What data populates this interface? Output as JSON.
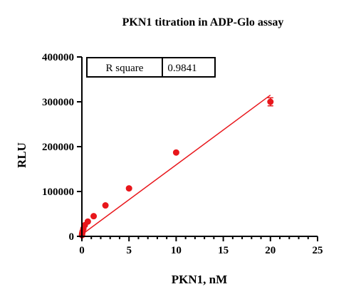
{
  "chart_data": {
    "type": "scatter",
    "title": "PKN1 titration in ADP-Glo assay",
    "xlabel": "PKN1, nM",
    "ylabel": "RLU",
    "xlim": [
      0,
      25
    ],
    "ylim": [
      0,
      400000
    ],
    "x_ticks": [
      0,
      5,
      10,
      15,
      20,
      25
    ],
    "y_ticks": [
      0,
      100000,
      200000,
      300000,
      400000
    ],
    "x_tick_labels": [
      "0",
      "5",
      "10",
      "15",
      "20",
      "25"
    ],
    "y_tick_labels": [
      "0",
      "100000",
      "200000",
      "300000",
      "400000"
    ],
    "grid": false,
    "series": [
      {
        "color": "#e8161b",
        "x": [
          0.01,
          0.02,
          0.04,
          0.08,
          0.16,
          0.31,
          0.63,
          1.25,
          2.5,
          5,
          10,
          20
        ],
        "y": [
          2500,
          5000,
          8000,
          11000,
          17000,
          25000,
          33000,
          45000,
          69000,
          107000,
          187000,
          300000
        ],
        "error": [
          0,
          0,
          0,
          0,
          0,
          0,
          0,
          0,
          0,
          0,
          0,
          9000
        ]
      }
    ],
    "fit_line": {
      "color": "#e8161b",
      "x": [
        0,
        20
      ],
      "y": [
        4000,
        315000
      ]
    },
    "stats_box": {
      "label": "R square",
      "value": "0.9841",
      "placement": "top-left"
    }
  }
}
